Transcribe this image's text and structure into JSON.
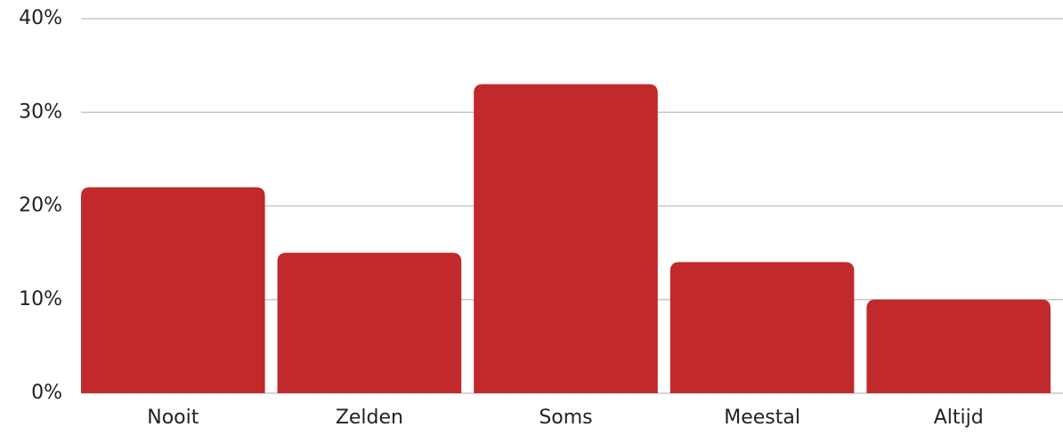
{
  "chart_data": {
    "type": "bar",
    "categories": [
      "Nooit",
      "Zelden",
      "Soms",
      "Meestal",
      "Altijd"
    ],
    "values": [
      22,
      15,
      33,
      14,
      10
    ],
    "color": "#c1292a",
    "ylim": [
      0,
      40
    ],
    "yticks": [
      {
        "value": 0,
        "label": "0%"
      },
      {
        "value": 10,
        "label": "10%"
      },
      {
        "value": 20,
        "label": "20%"
      },
      {
        "value": 30,
        "label": "30%"
      },
      {
        "value": 40,
        "label": "40%"
      }
    ],
    "grid": true
  }
}
